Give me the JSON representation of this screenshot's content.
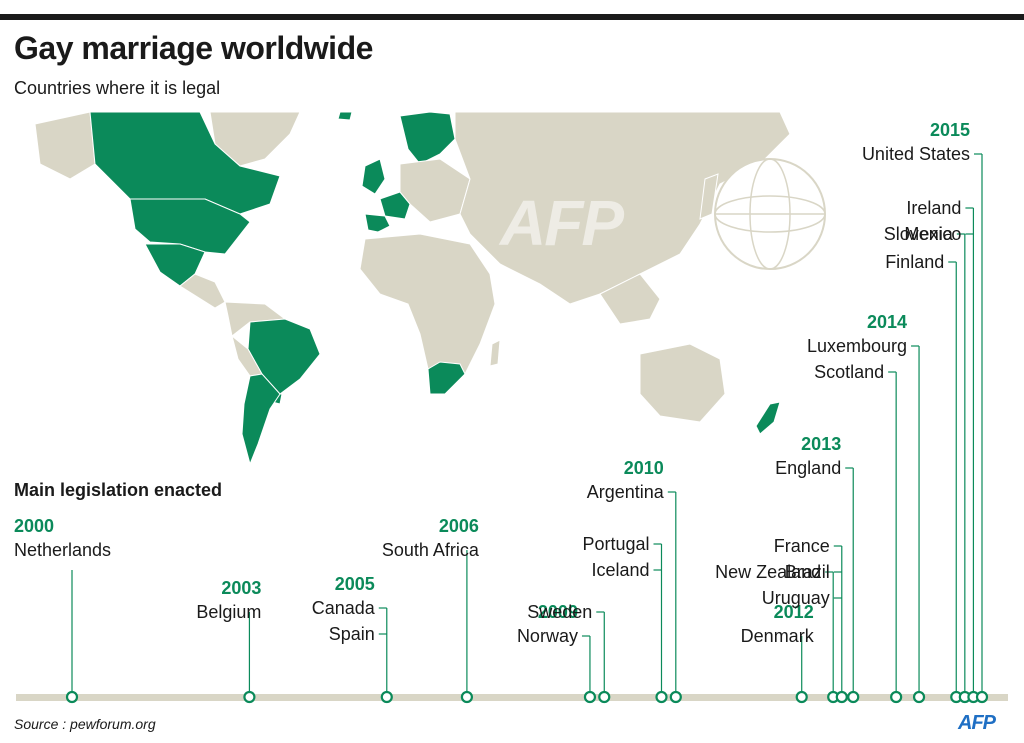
{
  "header": {
    "title": "Gay marriage worldwide",
    "subtitle": "Countries where it is legal"
  },
  "legend_section": "Main legislation enacted",
  "source": "Source : pewforum.org",
  "logo": "AFP",
  "watermark": "AFP",
  "colors": {
    "legal": "#0b8a5a",
    "land": "#d9d6c6",
    "year": "#0b8a5a",
    "axis": "#d9d6c6",
    "text": "#1a1a1a"
  },
  "legal_countries": [
    "Netherlands",
    "Belgium",
    "Canada",
    "Spain",
    "South Africa",
    "Norway",
    "Sweden",
    "Argentina",
    "Iceland",
    "Portugal",
    "Denmark",
    "New Zealand",
    "France",
    "Brazil",
    "Uruguay",
    "England",
    "Scotland",
    "Luxembourg",
    "Finland",
    "Slovenia",
    "Ireland",
    "Mexico",
    "United States"
  ],
  "timeline": {
    "x_range": [
      2000,
      2015.9
    ],
    "events": [
      {
        "year": 2000,
        "x": 2000.0,
        "year_label": "2000",
        "countries": [
          "Netherlands"
        ]
      },
      {
        "year": 2003,
        "x": 2003.1,
        "year_label": "2003",
        "countries": [
          "Belgium"
        ]
      },
      {
        "year": 2005,
        "x": 2005.5,
        "year_label": "2005",
        "countries": [
          "Canada",
          "Spain"
        ]
      },
      {
        "year": 2006,
        "x": 2006.9,
        "year_label": "2006",
        "countries": [
          "South Africa"
        ]
      },
      {
        "year": 2009,
        "x": 2009.05,
        "year_label": "2009",
        "countries": [
          "Norway"
        ]
      },
      {
        "year": 2009,
        "x": 2009.3,
        "year_label": "",
        "countries": [
          "Sweden"
        ]
      },
      {
        "year": 2010,
        "x": 2010.3,
        "year_label": "",
        "countries": [
          "Portugal",
          "Iceland"
        ]
      },
      {
        "year": 2010,
        "x": 2010.55,
        "year_label": "2010",
        "countries": [
          "Argentina"
        ]
      },
      {
        "year": 2012,
        "x": 2012.75,
        "year_label": "2012",
        "countries": [
          "Denmark"
        ]
      },
      {
        "year": 2013,
        "x": 2013.3,
        "year_label": "",
        "countries": [
          "New Zealand"
        ]
      },
      {
        "year": 2013,
        "x": 2013.45,
        "year_label": "",
        "countries": [
          "France",
          "Brazil",
          "Uruguay"
        ]
      },
      {
        "year": 2013,
        "x": 2013.65,
        "year_label": "2013",
        "countries": [
          "England"
        ]
      },
      {
        "year": 2014,
        "x": 2014.4,
        "year_label": "",
        "countries": [
          "Scotland"
        ]
      },
      {
        "year": 2014,
        "x": 2014.8,
        "year_label": "2014",
        "countries": [
          "Luxembourg"
        ]
      },
      {
        "year": 2015,
        "x": 2015.45,
        "year_label": "",
        "countries": [
          "Finland"
        ]
      },
      {
        "year": 2015,
        "x": 2015.6,
        "year_label": "",
        "countries": [
          "Slovenia"
        ]
      },
      {
        "year": 2015,
        "x": 2015.75,
        "year_label": "",
        "countries": [
          "Ireland",
          "Mexico"
        ]
      },
      {
        "year": 2015,
        "x": 2015.9,
        "year_label": "2015",
        "countries": [
          "United States"
        ]
      }
    ]
  }
}
